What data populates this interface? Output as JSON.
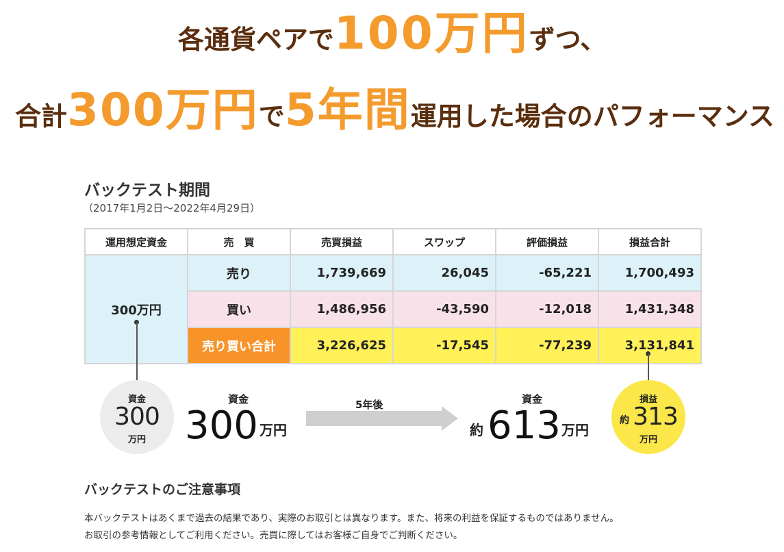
{
  "headline": {
    "line1_a": "各通貨ペアで",
    "line1_b": "100万円",
    "line1_c": "ずつ、",
    "line2_a": "合計",
    "line2_b": "300万円",
    "line2_c": "で",
    "line2_d": "5年間",
    "line2_e": "運用した場合のパフォーマンス"
  },
  "backtest": {
    "title": "バックテスト期間",
    "period": "（2017年1月2日〜2022年4月29日）"
  },
  "table": {
    "headers": [
      "運用想定資金",
      "売　買",
      "売買損益",
      "スワップ",
      "評価損益",
      "損益合計"
    ],
    "capital": "300万円",
    "rows": [
      {
        "side": "売り",
        "trade": "1,739,669",
        "swap": "26,045",
        "valuation": "-65,221",
        "total": "1,700,493"
      },
      {
        "side": "買い",
        "trade": "1,486,956",
        "swap": "-43,590",
        "valuation": "-12,018",
        "total": "1,431,348"
      },
      {
        "side": "売り買い合計",
        "trade": "3,226,625",
        "swap": "-17,545",
        "valuation": "-77,239",
        "total": "3,131,841"
      }
    ]
  },
  "summary": {
    "left_circle": {
      "caption": "資金",
      "value": "300",
      "unit": "万円"
    },
    "start": {
      "label": "資金",
      "value": "300",
      "unit": "万円"
    },
    "arrow_label": "5年後",
    "end": {
      "label": "資金",
      "prefix": "約",
      "value": "613",
      "unit": "万円"
    },
    "right_circle": {
      "caption": "損益",
      "prefix": "約",
      "value": "313",
      "unit": "万円"
    }
  },
  "notes": {
    "title": "バックテストのご注意事項",
    "line1": "本バックテストはあくまで過去の結果であり、実際のお取引とは異なります。また、将来の利益を保証するものではありません。",
    "line2": "お取引の参考情報としてご利用ください。売買に際してはお客様ご自身でご判断ください。"
  },
  "colors": {
    "accent_orange": "#f49b2e",
    "headline_brown": "#5a2e0e",
    "sell_row": "#dcf2f8",
    "buy_row": "#f9e1ea",
    "total_row": "#fff157",
    "total_label": "#f8932a"
  }
}
